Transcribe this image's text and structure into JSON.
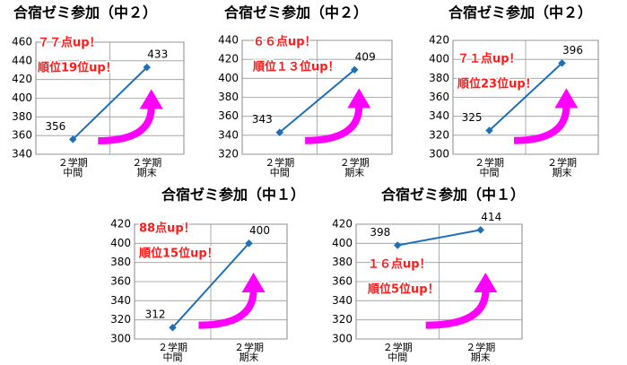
{
  "chart_data": [
    {
      "type": "line",
      "title": "合宿ゼミ参加（中２）",
      "categories": [
        "２学期\n中間",
        "２学期\n期末"
      ],
      "values": [
        356,
        433
      ],
      "color": "#1f6fb5",
      "ylim": [
        340,
        460
      ],
      "yticks": [
        340,
        360,
        380,
        400,
        420,
        440,
        460
      ],
      "grid": true,
      "annotations": [
        "７７点up！",
        "順位19位up！"
      ]
    },
    {
      "type": "line",
      "title": "合宿ゼミ参加（中２）",
      "categories": [
        "２学期\n中間",
        "２学期\n期末"
      ],
      "values": [
        343,
        409
      ],
      "color": "#1f6fb5",
      "ylim": [
        320,
        440
      ],
      "yticks": [
        320,
        340,
        360,
        380,
        400,
        420,
        440
      ],
      "grid": true,
      "annotations": [
        "６６点up！",
        "順位１３位up！"
      ]
    },
    {
      "type": "line",
      "title": "合宿ゼミ参加（中２）",
      "categories": [
        "２学期\n中間",
        "２学期\n期末"
      ],
      "values": [
        325,
        396
      ],
      "color": "#1f6fb5",
      "ylim": [
        300,
        420
      ],
      "yticks": [
        300,
        320,
        340,
        360,
        380,
        400,
        420
      ],
      "grid": true,
      "annotations": [
        "７１点up！",
        "順位23位up！"
      ]
    },
    {
      "type": "line",
      "title": "合宿ゼミ参加（中１）",
      "categories": [
        "２学期\n中間",
        "２学期\n期末"
      ],
      "values": [
        312,
        400
      ],
      "color": "#1f6fb5",
      "ylim": [
        300,
        420
      ],
      "yticks": [
        300,
        320,
        340,
        360,
        380,
        400,
        420
      ],
      "grid": true,
      "annotations": [
        "88点up！",
        "順位15位up！"
      ]
    },
    {
      "type": "line",
      "title": "合宿ゼミ参加（中１）",
      "categories": [
        "２学期\n中間",
        "２学期\n期末"
      ],
      "values": [
        398,
        414
      ],
      "color": "#1f6fb5",
      "ylim": [
        300,
        420
      ],
      "yticks": [
        300,
        320,
        340,
        360,
        380,
        400,
        420
      ],
      "grid": true,
      "annotations": [
        "１６点up！",
        "順位5位up！"
      ]
    }
  ]
}
